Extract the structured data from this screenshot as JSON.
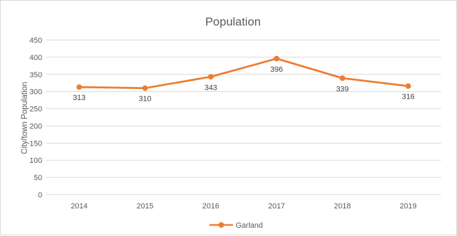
{
  "chart_data": {
    "type": "line",
    "title": "Population",
    "xlabel": "",
    "ylabel": "City/town Population",
    "categories": [
      "2014",
      "2015",
      "2016",
      "2017",
      "2018",
      "2019"
    ],
    "series": [
      {
        "name": "Garland",
        "values": [
          313,
          310,
          343,
          396,
          339,
          316
        ],
        "data_labels": [
          "313",
          "310",
          "343",
          "396",
          "339",
          "316"
        ]
      }
    ],
    "ylim": [
      0,
      450
    ],
    "y_ticks": [
      "0",
      "50",
      "100",
      "150",
      "200",
      "250",
      "300",
      "350",
      "400",
      "450"
    ],
    "grid": true,
    "legend_position": "bottom",
    "colors": {
      "series": "#ED7D31",
      "grid": "#D9D9D9",
      "text": "#595959"
    }
  }
}
